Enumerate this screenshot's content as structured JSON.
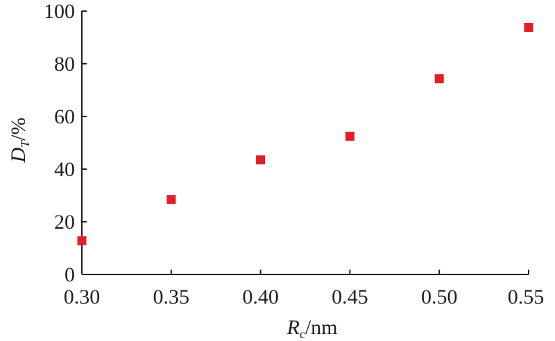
{
  "chart_data": {
    "type": "scatter",
    "title": "",
    "xlabel": {
      "symbol": "R",
      "sub": "c",
      "unit": "/nm"
    },
    "ylabel": {
      "symbol": "D",
      "sub": "T",
      "unit": "/%"
    },
    "xlim": [
      0.3,
      0.55
    ],
    "ylim": [
      0,
      100
    ],
    "xticks": [
      "0.30",
      "0.35",
      "0.40",
      "0.45",
      "0.50",
      "0.55"
    ],
    "yticks": [
      "0",
      "20",
      "40",
      "60",
      "80",
      "100"
    ],
    "grid": false,
    "legend": "none",
    "marker": "square",
    "color": "#e31e25",
    "series": [
      {
        "x": [
          0.3,
          0.35,
          0.4,
          0.45,
          0.5,
          0.55
        ],
        "y": [
          12.8,
          28.5,
          43.5,
          52.5,
          74.3,
          93.8
        ]
      }
    ]
  }
}
